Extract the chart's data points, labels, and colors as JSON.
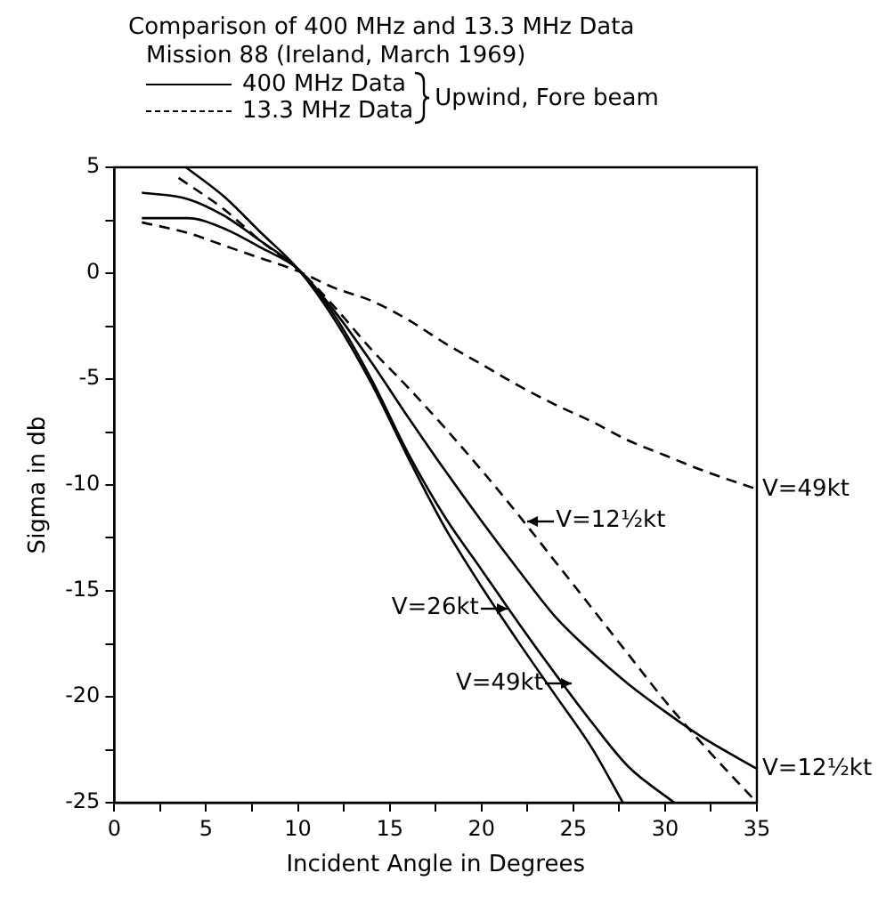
{
  "chart_data": {
    "type": "line",
    "title": "Comparison of 400 MHz and 13.3 MHz Data",
    "subtitle": "Mission 88 (Ireland, March 1969)",
    "legend_title": "Upwind, Fore beam",
    "legend": "top",
    "grid": false,
    "marker": "none",
    "xlabel": "Incident Angle in Degrees",
    "ylabel": "Sigma in db",
    "xlim": [
      0,
      35
    ],
    "ylim": [
      -25,
      5
    ],
    "xticks": [
      0,
      {
        "value": 2.5,
        "label": null
      },
      5,
      {
        "value": 7.5,
        "label": null
      },
      10,
      {
        "value": 12.5,
        "label": null
      },
      15,
      {
        "value": 17.5,
        "label": null
      },
      20,
      {
        "value": 22.5,
        "label": null
      },
      25,
      {
        "value": 27.5,
        "label": null
      },
      30,
      {
        "value": 32.5,
        "label": null
      },
      35
    ],
    "yticks": [
      -25,
      {
        "value": -22.5,
        "label": null
      },
      -20,
      {
        "value": -17.5,
        "label": null
      },
      -15,
      {
        "value": -12.5,
        "label": null
      },
      -10,
      {
        "value": -7.5,
        "label": null
      },
      -5,
      {
        "value": -2.5,
        "label": null
      },
      0,
      {
        "value": 2.5,
        "label": null
      },
      5
    ],
    "series": [
      {
        "name": "400 MHz Data",
        "color": "#000000",
        "line_style": "solid",
        "x": [
          3.9,
          6,
          8,
          10,
          12,
          14,
          16,
          18,
          20,
          22,
          24,
          26,
          27.7
        ],
        "values": [
          5,
          3.6,
          1.9,
          0.2,
          -2.2,
          -5.2,
          -8.7,
          -12,
          -14.8,
          -17.4,
          -19.9,
          -22.4,
          -25
        ]
      },
      {
        "color": "#000000",
        "line_style": "solid",
        "x": [
          1.5,
          4,
          6,
          8,
          10,
          12,
          14,
          16,
          18,
          20,
          22,
          24,
          26,
          28,
          30.5
        ],
        "values": [
          3.8,
          3.5,
          2.7,
          1.5,
          0.2,
          -2,
          -5,
          -8.5,
          -11.5,
          -14,
          -16.5,
          -18.9,
          -21.2,
          -23.3,
          -25
        ]
      },
      {
        "color": "#000000",
        "line_style": "solid",
        "x": [
          1.5,
          4,
          6,
          8,
          10,
          12,
          14,
          16,
          18,
          20,
          22,
          24,
          26,
          28,
          30,
          32,
          35
        ],
        "values": [
          2.6,
          2.6,
          2.1,
          1.2,
          0.2,
          -1.8,
          -4.2,
          -6.8,
          -9.3,
          -11.7,
          -14,
          -16.2,
          -17.9,
          -19.4,
          -20.7,
          -21.9,
          -23.4
        ]
      },
      {
        "name": "13.3 MHz Data",
        "color": "#000000",
        "line_style": "dashed",
        "x": [
          3.5,
          6,
          8,
          10,
          12,
          14,
          16,
          18,
          20,
          22,
          24,
          26,
          28,
          30,
          32,
          35
        ],
        "values": [
          4.5,
          3,
          1.5,
          0.2,
          -1.6,
          -3.6,
          -5.4,
          -7.3,
          -9.3,
          -11.4,
          -13.6,
          -15.8,
          -18,
          -20.2,
          -22.2,
          -25
        ]
      },
      {
        "color": "#000000",
        "line_style": "dashed",
        "x": [
          1.5,
          4,
          6,
          8,
          10,
          12,
          14,
          16,
          18,
          20,
          22,
          24,
          26,
          28,
          30,
          32,
          35
        ],
        "values": [
          2.4,
          1.9,
          1.3,
          0.7,
          0.1,
          -0.7,
          -1.3,
          -2.2,
          -3.3,
          -4.3,
          -5.3,
          -6.2,
          -7,
          -7.9,
          -8.6,
          -9.3,
          -10.2
        ]
      }
    ],
    "annotations": [
      {
        "text": "V=49kt",
        "x": 35,
        "y": -10.2
      },
      {
        "text": "V=12½kt",
        "x": 22.4,
        "y": -11.7
      },
      {
        "text": "V=26kt",
        "x": 21.5,
        "y": -15.8
      },
      {
        "text": "V=49kt",
        "x": 25,
        "y": -19.4
      },
      {
        "text": "V=12½kt",
        "x": 35,
        "y": -23.4
      }
    ]
  }
}
